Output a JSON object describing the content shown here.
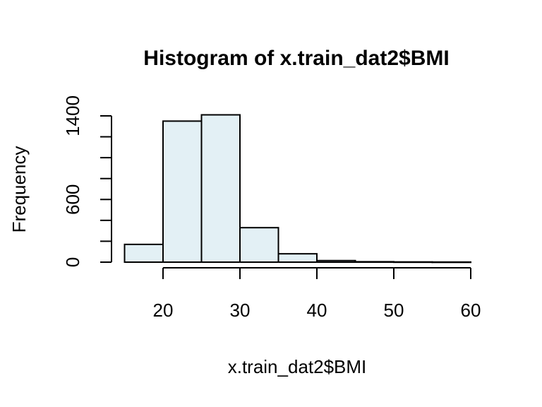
{
  "chart_data": {
    "type": "bar",
    "title": "Histogram of x.train_dat2$BMI",
    "xlabel": "x.train_dat2$BMI",
    "ylabel": "Frequency",
    "bar_fill": "#e3f0f5",
    "bins": [
      {
        "from": 15,
        "to": 20,
        "count": 170
      },
      {
        "from": 20,
        "to": 25,
        "count": 1350
      },
      {
        "from": 25,
        "to": 30,
        "count": 1410
      },
      {
        "from": 30,
        "to": 35,
        "count": 330
      },
      {
        "from": 35,
        "to": 40,
        "count": 80
      },
      {
        "from": 40,
        "to": 45,
        "count": 15
      },
      {
        "from": 45,
        "to": 50,
        "count": 4
      },
      {
        "from": 50,
        "to": 55,
        "count": 2
      },
      {
        "from": 55,
        "to": 60,
        "count": 1
      }
    ],
    "x_ticks": [
      20,
      30,
      40,
      50,
      60
    ],
    "y_ticks": [
      0,
      200,
      400,
      600,
      800,
      1000,
      1200,
      1400
    ],
    "y_tick_labels": [
      {
        "value": 0,
        "label": "0"
      },
      {
        "value": 600,
        "label": "600"
      },
      {
        "value": 1400,
        "label": "1400"
      }
    ],
    "xlim": [
      15,
      60
    ],
    "ylim": [
      0,
      1400
    ]
  }
}
